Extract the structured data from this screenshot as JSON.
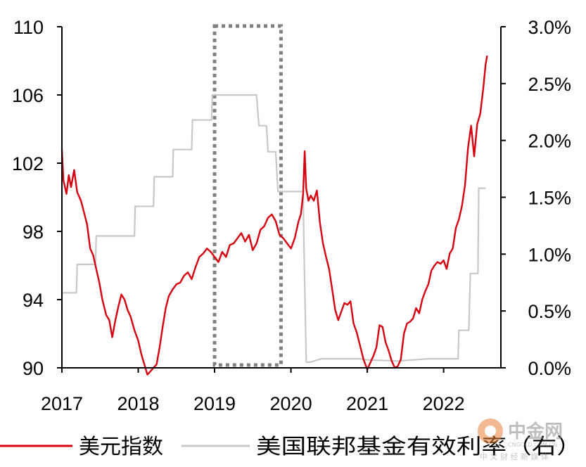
{
  "chart_data": {
    "type": "line",
    "title": "",
    "x_ticks": [
      "2017",
      "2018",
      "2019",
      "2020",
      "2021",
      "2022"
    ],
    "y_left": {
      "label": "",
      "min": 90,
      "max": 110,
      "ticks": [
        "90",
        "94",
        "98",
        "102",
        "106",
        "110"
      ]
    },
    "y_right": {
      "label": "",
      "min": 0,
      "max": 3.0,
      "ticks": [
        "0.0%",
        "0.5%",
        "1.0%",
        "1.5%",
        "2.0%",
        "2.5%",
        "3.0%"
      ]
    },
    "highlight_box": {
      "x_start": 2019.0,
      "x_end": 2019.87,
      "style": "dotted"
    },
    "legend_position": "bottom",
    "series": [
      {
        "name": "美元指数",
        "axis": "left",
        "color": "#d7000f",
        "points": [
          [
            2017.0,
            102.8
          ],
          [
            2017.02,
            101.0
          ],
          [
            2017.06,
            100.2
          ],
          [
            2017.09,
            101.3
          ],
          [
            2017.12,
            100.6
          ],
          [
            2017.16,
            101.6
          ],
          [
            2017.2,
            100.3
          ],
          [
            2017.25,
            99.8
          ],
          [
            2017.29,
            99.1
          ],
          [
            2017.33,
            98.4
          ],
          [
            2017.37,
            97.0
          ],
          [
            2017.41,
            96.6
          ],
          [
            2017.45,
            95.8
          ],
          [
            2017.49,
            95.0
          ],
          [
            2017.53,
            94.0
          ],
          [
            2017.58,
            93.1
          ],
          [
            2017.62,
            92.8
          ],
          [
            2017.66,
            91.8
          ],
          [
            2017.7,
            92.8
          ],
          [
            2017.74,
            93.6
          ],
          [
            2017.78,
            94.3
          ],
          [
            2017.82,
            94.0
          ],
          [
            2017.86,
            93.4
          ],
          [
            2017.9,
            93.0
          ],
          [
            2017.95,
            92.2
          ],
          [
            2018.0,
            91.6
          ],
          [
            2018.04,
            90.8
          ],
          [
            2018.08,
            90.2
          ],
          [
            2018.12,
            89.6
          ],
          [
            2018.16,
            89.8
          ],
          [
            2018.2,
            90.0
          ],
          [
            2018.24,
            90.2
          ],
          [
            2018.28,
            91.2
          ],
          [
            2018.32,
            92.4
          ],
          [
            2018.36,
            93.5
          ],
          [
            2018.4,
            94.2
          ],
          [
            2018.45,
            94.6
          ],
          [
            2018.5,
            94.9
          ],
          [
            2018.55,
            95.0
          ],
          [
            2018.6,
            95.4
          ],
          [
            2018.65,
            95.6
          ],
          [
            2018.7,
            95.2
          ],
          [
            2018.75,
            95.9
          ],
          [
            2018.8,
            96.5
          ],
          [
            2018.85,
            96.7
          ],
          [
            2018.9,
            97.0
          ],
          [
            2018.95,
            96.8
          ],
          [
            2019.0,
            96.5
          ],
          [
            2019.05,
            96.2
          ],
          [
            2019.1,
            96.8
          ],
          [
            2019.15,
            96.5
          ],
          [
            2019.2,
            97.2
          ],
          [
            2019.25,
            97.3
          ],
          [
            2019.3,
            97.6
          ],
          [
            2019.35,
            97.9
          ],
          [
            2019.4,
            97.4
          ],
          [
            2019.45,
            97.8
          ],
          [
            2019.5,
            96.9
          ],
          [
            2019.55,
            97.3
          ],
          [
            2019.6,
            98.1
          ],
          [
            2019.65,
            98.3
          ],
          [
            2019.7,
            98.8
          ],
          [
            2019.75,
            99.0
          ],
          [
            2019.8,
            98.6
          ],
          [
            2019.85,
            97.8
          ],
          [
            2019.9,
            97.6
          ],
          [
            2019.95,
            97.3
          ],
          [
            2020.0,
            97.0
          ],
          [
            2020.05,
            97.6
          ],
          [
            2020.1,
            98.6
          ],
          [
            2020.13,
            99.0
          ],
          [
            2020.16,
            100.2
          ],
          [
            2020.18,
            102.7
          ],
          [
            2020.2,
            100.5
          ],
          [
            2020.23,
            99.8
          ],
          [
            2020.26,
            100.1
          ],
          [
            2020.3,
            99.8
          ],
          [
            2020.34,
            100.4
          ],
          [
            2020.38,
            98.5
          ],
          [
            2020.42,
            97.3
          ],
          [
            2020.46,
            96.5
          ],
          [
            2020.5,
            95.8
          ],
          [
            2020.54,
            94.6
          ],
          [
            2020.58,
            93.4
          ],
          [
            2020.62,
            92.8
          ],
          [
            2020.66,
            93.3
          ],
          [
            2020.7,
            93.8
          ],
          [
            2020.74,
            93.7
          ],
          [
            2020.78,
            93.9
          ],
          [
            2020.82,
            92.6
          ],
          [
            2020.86,
            92.1
          ],
          [
            2020.9,
            91.4
          ],
          [
            2020.95,
            90.5
          ],
          [
            2021.0,
            89.9
          ],
          [
            2021.04,
            90.3
          ],
          [
            2021.08,
            90.7
          ],
          [
            2021.12,
            91.2
          ],
          [
            2021.16,
            92.5
          ],
          [
            2021.2,
            92.4
          ],
          [
            2021.24,
            91.5
          ],
          [
            2021.28,
            91.0
          ],
          [
            2021.32,
            90.4
          ],
          [
            2021.36,
            90.0
          ],
          [
            2021.4,
            90.1
          ],
          [
            2021.44,
            90.5
          ],
          [
            2021.48,
            92.0
          ],
          [
            2021.52,
            92.6
          ],
          [
            2021.56,
            92.7
          ],
          [
            2021.6,
            92.9
          ],
          [
            2021.64,
            93.5
          ],
          [
            2021.68,
            93.2
          ],
          [
            2021.72,
            94.0
          ],
          [
            2021.76,
            94.5
          ],
          [
            2021.8,
            94.9
          ],
          [
            2021.84,
            95.7
          ],
          [
            2021.88,
            96.0
          ],
          [
            2021.92,
            96.2
          ],
          [
            2021.96,
            96.1
          ],
          [
            2022.0,
            96.3
          ],
          [
            2022.04,
            95.8
          ],
          [
            2022.08,
            96.7
          ],
          [
            2022.12,
            97.0
          ],
          [
            2022.16,
            98.2
          ],
          [
            2022.2,
            98.7
          ],
          [
            2022.24,
            99.5
          ],
          [
            2022.28,
            100.7
          ],
          [
            2022.32,
            102.9
          ],
          [
            2022.36,
            104.2
          ],
          [
            2022.4,
            102.4
          ],
          [
            2022.44,
            104.3
          ],
          [
            2022.48,
            104.9
          ],
          [
            2022.52,
            106.4
          ],
          [
            2022.55,
            107.8
          ],
          [
            2022.57,
            108.3
          ]
        ]
      },
      {
        "name": "美国联邦基金有效利率（右）",
        "axis": "right",
        "color": "#c8c8c8",
        "points": [
          [
            2017.0,
            0.66
          ],
          [
            2017.05,
            0.66
          ],
          [
            2017.07,
            0.66
          ],
          [
            2017.1,
            0.66
          ],
          [
            2017.15,
            0.66
          ],
          [
            2017.19,
            0.66
          ],
          [
            2017.2,
            0.91
          ],
          [
            2017.27,
            0.91
          ],
          [
            2017.44,
            0.91
          ],
          [
            2017.45,
            1.16
          ],
          [
            2017.9,
            1.16
          ],
          [
            2017.95,
            1.16
          ],
          [
            2017.96,
            1.42
          ],
          [
            2018.2,
            1.42
          ],
          [
            2018.21,
            1.68
          ],
          [
            2018.45,
            1.68
          ],
          [
            2018.46,
            1.92
          ],
          [
            2018.7,
            1.92
          ],
          [
            2018.71,
            2.18
          ],
          [
            2018.96,
            2.18
          ],
          [
            2018.97,
            2.4
          ],
          [
            2019.55,
            2.4
          ],
          [
            2019.58,
            2.13
          ],
          [
            2019.68,
            2.13
          ],
          [
            2019.7,
            1.9
          ],
          [
            2019.8,
            1.9
          ],
          [
            2019.83,
            1.55
          ],
          [
            2020.16,
            1.55
          ],
          [
            2020.17,
            1.1
          ],
          [
            2020.2,
            0.05
          ],
          [
            2020.25,
            0.05
          ],
          [
            2020.4,
            0.08
          ],
          [
            2020.9,
            0.08
          ],
          [
            2021.0,
            0.07
          ],
          [
            2021.4,
            0.06
          ],
          [
            2021.8,
            0.08
          ],
          [
            2022.19,
            0.08
          ],
          [
            2022.2,
            0.33
          ],
          [
            2022.33,
            0.33
          ],
          [
            2022.35,
            0.83
          ],
          [
            2022.45,
            0.83
          ],
          [
            2022.46,
            1.58
          ],
          [
            2022.55,
            1.58
          ]
        ]
      }
    ]
  },
  "watermark": {
    "brand": "中金网",
    "url": "CNGOLD.COM.CN",
    "tagline": "中 文 财 经 新 媒 体"
  }
}
